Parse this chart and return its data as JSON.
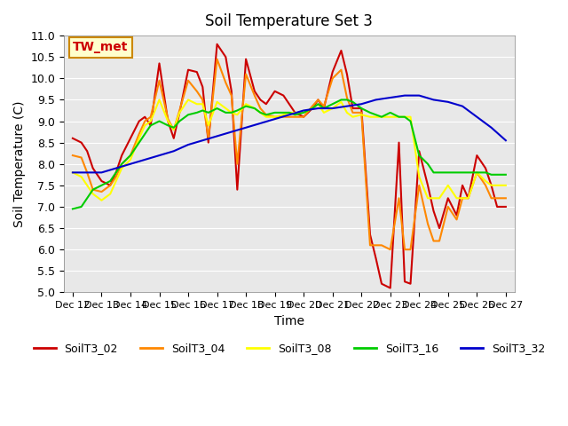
{
  "title": "Soil Temperature Set 3",
  "xlabel": "Time",
  "ylabel": "Soil Temperature (C)",
  "ylim": [
    5.0,
    11.0
  ],
  "yticks": [
    5.0,
    5.5,
    6.0,
    6.5,
    7.0,
    7.5,
    8.0,
    8.5,
    9.0,
    9.5,
    10.0,
    10.5,
    11.0
  ],
  "xtick_labels": [
    "Dec 12",
    "Dec 13",
    "Dec 14",
    "Dec 15",
    "Dec 16",
    "Dec 17",
    "Dec 18",
    "Dec 19",
    "Dec 20",
    "Dec 21",
    "Dec 22",
    "Dec 23",
    "Dec 24",
    "Dec 25",
    "Dec 26",
    "Dec 27"
  ],
  "bg_color": "#e8e8e8",
  "annotation_text": "TW_met",
  "annotation_color": "#cc0000",
  "annotation_bg": "#ffffcc",
  "annotation_border": "#cc8800",
  "series": {
    "SoilT3_02": {
      "color": "#cc0000",
      "x": [
        0,
        0.3,
        0.5,
        0.7,
        1.0,
        1.3,
        1.5,
        1.7,
        2.0,
        2.3,
        2.5,
        2.7,
        3.0,
        3.3,
        3.5,
        3.7,
        4.0,
        4.3,
        4.5,
        4.7,
        5.0,
        5.3,
        5.5,
        5.7,
        6.0,
        6.3,
        6.5,
        6.7,
        7.0,
        7.3,
        7.5,
        7.7,
        8.0,
        8.3,
        8.5,
        8.7,
        9.0,
        9.3,
        9.5,
        9.7,
        10.0,
        10.3,
        10.5,
        10.7,
        11.0,
        11.3,
        11.5,
        11.7,
        12.0,
        12.3,
        12.5,
        12.7,
        13.0,
        13.3,
        13.5,
        13.7,
        14.0,
        14.3,
        14.5,
        14.7,
        15.0
      ],
      "y": [
        8.6,
        8.5,
        8.3,
        7.9,
        7.6,
        7.5,
        7.8,
        8.2,
        8.6,
        9.0,
        9.1,
        8.9,
        10.35,
        9.0,
        8.6,
        9.2,
        10.2,
        10.15,
        9.8,
        8.5,
        10.8,
        10.5,
        9.7,
        7.4,
        10.45,
        9.7,
        9.5,
        9.4,
        9.7,
        9.6,
        9.4,
        9.2,
        9.1,
        9.3,
        9.5,
        9.3,
        10.15,
        10.65,
        10.1,
        9.3,
        9.3,
        6.35,
        5.8,
        5.2,
        5.1,
        8.5,
        5.25,
        5.2,
        8.3,
        7.5,
        6.9,
        6.5,
        7.2,
        6.8,
        7.5,
        7.2,
        8.2,
        7.9,
        7.5,
        7.0,
        7.0
      ]
    },
    "SoilT3_04": {
      "color": "#ff8800",
      "x": [
        0,
        0.3,
        0.5,
        0.7,
        1.0,
        1.3,
        1.5,
        1.7,
        2.0,
        2.3,
        2.5,
        2.7,
        3.0,
        3.3,
        3.5,
        3.7,
        4.0,
        4.3,
        4.5,
        4.7,
        5.0,
        5.3,
        5.5,
        5.7,
        6.0,
        6.3,
        6.5,
        6.7,
        7.0,
        7.3,
        7.5,
        7.7,
        8.0,
        8.3,
        8.5,
        8.7,
        9.0,
        9.3,
        9.5,
        9.7,
        10.0,
        10.3,
        10.5,
        10.7,
        11.0,
        11.3,
        11.5,
        11.7,
        12.0,
        12.3,
        12.5,
        12.7,
        13.0,
        13.3,
        13.5,
        13.7,
        14.0,
        14.3,
        14.5,
        14.7,
        15.0
      ],
      "y": [
        8.2,
        8.15,
        7.8,
        7.4,
        7.35,
        7.5,
        7.7,
        8.0,
        8.2,
        8.7,
        9.0,
        9.1,
        9.95,
        9.05,
        8.8,
        9.25,
        9.95,
        9.7,
        9.5,
        8.6,
        10.45,
        9.9,
        9.6,
        8.0,
        10.1,
        9.6,
        9.3,
        9.15,
        9.1,
        9.1,
        9.1,
        9.1,
        9.1,
        9.35,
        9.5,
        9.35,
        10.0,
        10.2,
        9.55,
        9.2,
        9.2,
        6.1,
        6.1,
        6.1,
        6.0,
        7.2,
        6.0,
        6.0,
        7.5,
        6.6,
        6.2,
        6.2,
        7.0,
        6.7,
        7.2,
        7.2,
        7.8,
        7.5,
        7.2,
        7.2,
        7.2
      ]
    },
    "SoilT3_08": {
      "color": "#ffff00",
      "x": [
        0,
        0.3,
        0.5,
        0.7,
        1.0,
        1.3,
        1.5,
        1.7,
        2.0,
        2.3,
        2.5,
        2.7,
        3.0,
        3.3,
        3.5,
        3.7,
        4.0,
        4.3,
        4.5,
        4.7,
        5.0,
        5.3,
        5.5,
        5.7,
        6.0,
        6.3,
        6.5,
        6.7,
        7.0,
        7.3,
        7.5,
        7.7,
        8.0,
        8.3,
        8.5,
        8.7,
        9.0,
        9.3,
        9.5,
        9.7,
        10.0,
        10.3,
        10.5,
        10.7,
        11.0,
        11.3,
        11.5,
        11.7,
        12.0,
        12.3,
        12.5,
        12.7,
        13.0,
        13.3,
        13.5,
        13.7,
        14.0,
        14.3,
        14.5,
        14.7,
        15.0
      ],
      "y": [
        7.8,
        7.7,
        7.5,
        7.3,
        7.15,
        7.3,
        7.6,
        7.9,
        8.1,
        8.6,
        8.9,
        9.0,
        9.5,
        9.0,
        8.8,
        9.2,
        9.5,
        9.4,
        9.4,
        8.9,
        9.45,
        9.3,
        9.2,
        9.15,
        9.4,
        9.3,
        9.2,
        9.1,
        9.1,
        9.15,
        9.2,
        9.2,
        9.2,
        9.3,
        9.4,
        9.2,
        9.3,
        9.45,
        9.2,
        9.1,
        9.15,
        9.1,
        9.1,
        9.1,
        9.1,
        9.1,
        9.1,
        9.1,
        7.7,
        7.2,
        7.2,
        7.2,
        7.5,
        7.2,
        7.2,
        7.2,
        7.8,
        7.6,
        7.5,
        7.5,
        7.5
      ]
    },
    "SoilT3_16": {
      "color": "#00cc00",
      "x": [
        0,
        0.3,
        0.5,
        0.7,
        1.0,
        1.3,
        1.5,
        1.7,
        2.0,
        2.3,
        2.5,
        2.7,
        3.0,
        3.3,
        3.5,
        3.7,
        4.0,
        4.3,
        4.5,
        4.7,
        5.0,
        5.3,
        5.5,
        5.7,
        6.0,
        6.3,
        6.5,
        6.7,
        7.0,
        7.3,
        7.5,
        7.7,
        8.0,
        8.3,
        8.5,
        8.7,
        9.0,
        9.3,
        9.5,
        9.7,
        10.0,
        10.3,
        10.5,
        10.7,
        11.0,
        11.3,
        11.5,
        11.7,
        12.0,
        12.3,
        12.5,
        12.7,
        13.0,
        13.3,
        13.5,
        13.7,
        14.0,
        14.3,
        14.5,
        14.7,
        15.0
      ],
      "y": [
        6.95,
        7.0,
        7.2,
        7.4,
        7.5,
        7.6,
        7.8,
        8.0,
        8.2,
        8.5,
        8.7,
        8.9,
        9.0,
        8.9,
        8.85,
        9.0,
        9.15,
        9.2,
        9.25,
        9.2,
        9.3,
        9.2,
        9.2,
        9.25,
        9.35,
        9.3,
        9.2,
        9.15,
        9.2,
        9.2,
        9.2,
        9.15,
        9.2,
        9.3,
        9.4,
        9.3,
        9.4,
        9.5,
        9.5,
        9.45,
        9.3,
        9.2,
        9.15,
        9.1,
        9.2,
        9.1,
        9.1,
        9.0,
        8.2,
        8.0,
        7.8,
        7.8,
        7.8,
        7.8,
        7.8,
        7.8,
        7.8,
        7.8,
        7.75,
        7.75,
        7.75
      ]
    },
    "SoilT3_32": {
      "color": "#0000cc",
      "x": [
        0,
        0.5,
        1.0,
        1.5,
        2.0,
        2.5,
        3.0,
        3.5,
        4.0,
        4.5,
        5.0,
        5.5,
        6.0,
        6.5,
        7.0,
        7.5,
        8.0,
        8.5,
        9.0,
        9.5,
        10.0,
        10.5,
        11.0,
        11.5,
        12.0,
        12.5,
        13.0,
        13.5,
        14.0,
        14.5,
        15.0
      ],
      "y": [
        7.8,
        7.8,
        7.8,
        7.9,
        8.0,
        8.1,
        8.2,
        8.3,
        8.45,
        8.55,
        8.65,
        8.75,
        8.85,
        8.95,
        9.05,
        9.15,
        9.25,
        9.3,
        9.3,
        9.35,
        9.4,
        9.5,
        9.55,
        9.6,
        9.6,
        9.5,
        9.45,
        9.35,
        9.1,
        8.85,
        8.55
      ]
    }
  }
}
